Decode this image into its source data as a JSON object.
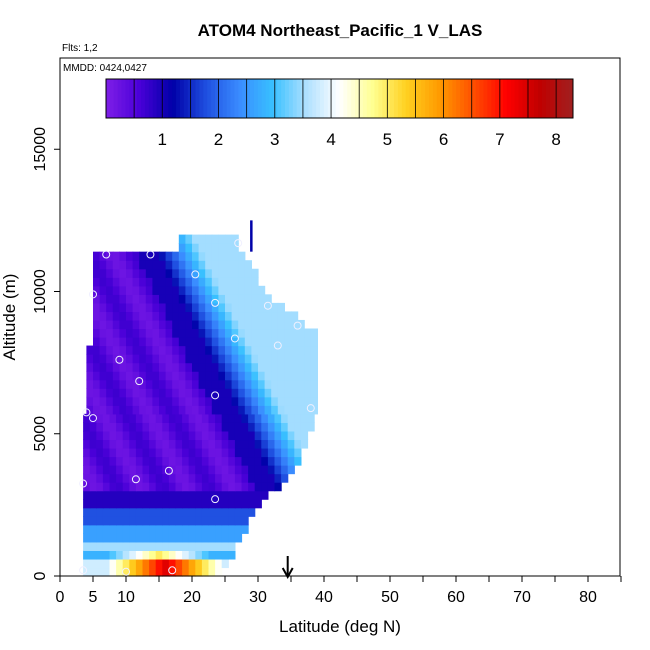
{
  "chart_data": {
    "type": "heatmap",
    "title": "ATOM4 Northeast_Pacific_1 V_LAS",
    "flights_label": "Flts: 1,2",
    "mmdd_label": "MMDD: 0424,0427",
    "xlabel": "Latitude (deg N)",
    "ylabel": "Altitude (m)",
    "xlim": [
      0,
      85
    ],
    "ylim": [
      0,
      17500
    ],
    "x_ticks": [
      0,
      5,
      10,
      20,
      30,
      40,
      50,
      60,
      70,
      80
    ],
    "x_tick_labels": [
      "0",
      "5",
      "10",
      "20",
      "30",
      "40",
      "50",
      "60",
      "70",
      "80"
    ],
    "y_ticks": [
      0,
      5000,
      10000,
      15000
    ],
    "y_tick_labels": [
      "0",
      "5000",
      "10000",
      "15000"
    ],
    "colorbar": {
      "ticks": [
        1,
        2,
        3,
        4,
        5,
        6,
        7,
        8
      ],
      "tick_labels": [
        "1",
        "2",
        "3",
        "4",
        "5",
        "6",
        "7",
        "8"
      ],
      "range": [
        0,
        8.3
      ],
      "colors": [
        "#7f1fe8",
        "#4a00d8",
        "#0000a8",
        "#1f4fe0",
        "#3a8cff",
        "#38c0ff",
        "#aee0ff",
        "#ffffff",
        "#ffff90",
        "#ffd020",
        "#ff9a00",
        "#ff5000",
        "#ff0000",
        "#c00000",
        "#a02020"
      ]
    },
    "marker_latitude": 34.5,
    "observations": [
      {
        "lat": 7,
        "alt": 11300
      },
      {
        "lat": 13.7,
        "alt": 11300
      },
      {
        "lat": 27,
        "alt": 11700
      },
      {
        "lat": 20.5,
        "alt": 10600
      },
      {
        "lat": 5,
        "alt": 9900
      },
      {
        "lat": 23.5,
        "alt": 9600
      },
      {
        "lat": 31.5,
        "alt": 9500
      },
      {
        "lat": 36,
        "alt": 8800
      },
      {
        "lat": 26.5,
        "alt": 8350
      },
      {
        "lat": 33,
        "alt": 8100
      },
      {
        "lat": 9,
        "alt": 7600
      },
      {
        "lat": 12,
        "alt": 6850
      },
      {
        "lat": 23.5,
        "alt": 6350
      },
      {
        "lat": 38,
        "alt": 5900
      },
      {
        "lat": 4,
        "alt": 5750
      },
      {
        "lat": 5,
        "alt": 5550
      },
      {
        "lat": 16.5,
        "alt": 3700
      },
      {
        "lat": 11.5,
        "alt": 3400
      },
      {
        "lat": 3.5,
        "alt": 3250
      },
      {
        "lat": 23.5,
        "alt": 2700
      },
      {
        "lat": 3.5,
        "alt": 200
      },
      {
        "lat": 10,
        "alt": 150
      },
      {
        "lat": 17,
        "alt": 200
      }
    ]
  }
}
